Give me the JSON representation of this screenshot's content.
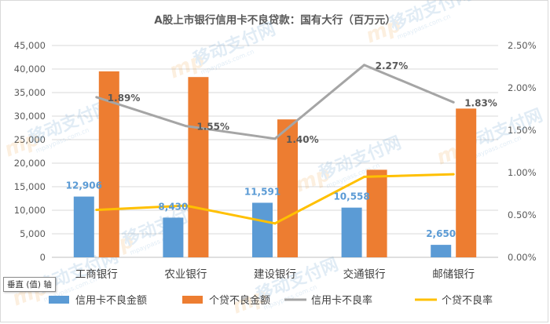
{
  "chart_data": {
    "type": "bar",
    "title": "A股上市银行信用卡不良贷款：国有大行（百万元）",
    "categories": [
      "工商银行",
      "农业银行",
      "建设银行",
      "交通银行",
      "邮储银行"
    ],
    "series": [
      {
        "name": "信用卡不良金额",
        "kind": "bar",
        "axis": "left",
        "color": "#5b9bd5",
        "values": [
          12906,
          8430,
          11591,
          10558,
          2650
        ],
        "labels": [
          "12,906",
          "8,430",
          "11,591",
          "10,558",
          "2,650"
        ]
      },
      {
        "name": "个贷不良金额",
        "kind": "bar",
        "axis": "left",
        "color": "#ed7d31",
        "values": [
          39500,
          38300,
          29300,
          18600,
          31600
        ]
      },
      {
        "name": "信用卡不良率",
        "kind": "line",
        "axis": "right",
        "color": "#a5a5a5",
        "values": [
          1.89,
          1.55,
          1.4,
          2.27,
          1.83
        ],
        "labels": [
          "1.89%",
          "1.55%",
          "1.40%",
          "2.27%",
          "1.83%"
        ]
      },
      {
        "name": "个贷不良率",
        "kind": "line",
        "axis": "right",
        "color": "#ffc000",
        "values": [
          0.56,
          0.61,
          0.4,
          0.95,
          0.98
        ]
      }
    ],
    "y_left": {
      "min": 0,
      "max": 45000,
      "step": 5000,
      "ticks": [
        "0",
        "5,000",
        "10,000",
        "15,000",
        "20,000",
        "25,000",
        "30,000",
        "35,000",
        "40,000",
        "45,000"
      ]
    },
    "y_right": {
      "min": 0,
      "max": 2.5,
      "step": 0.5,
      "ticks": [
        "0.00%",
        "0.50%",
        "1.00%",
        "1.50%",
        "2.00%",
        "2.50%"
      ]
    },
    "grid": true,
    "legend_position": "bottom"
  },
  "axis_tooltip": "垂直 (值) 轴",
  "watermark": {
    "text": "移动支付网",
    "subtext": "mpaypass.com.cn",
    "logo": "mp"
  }
}
